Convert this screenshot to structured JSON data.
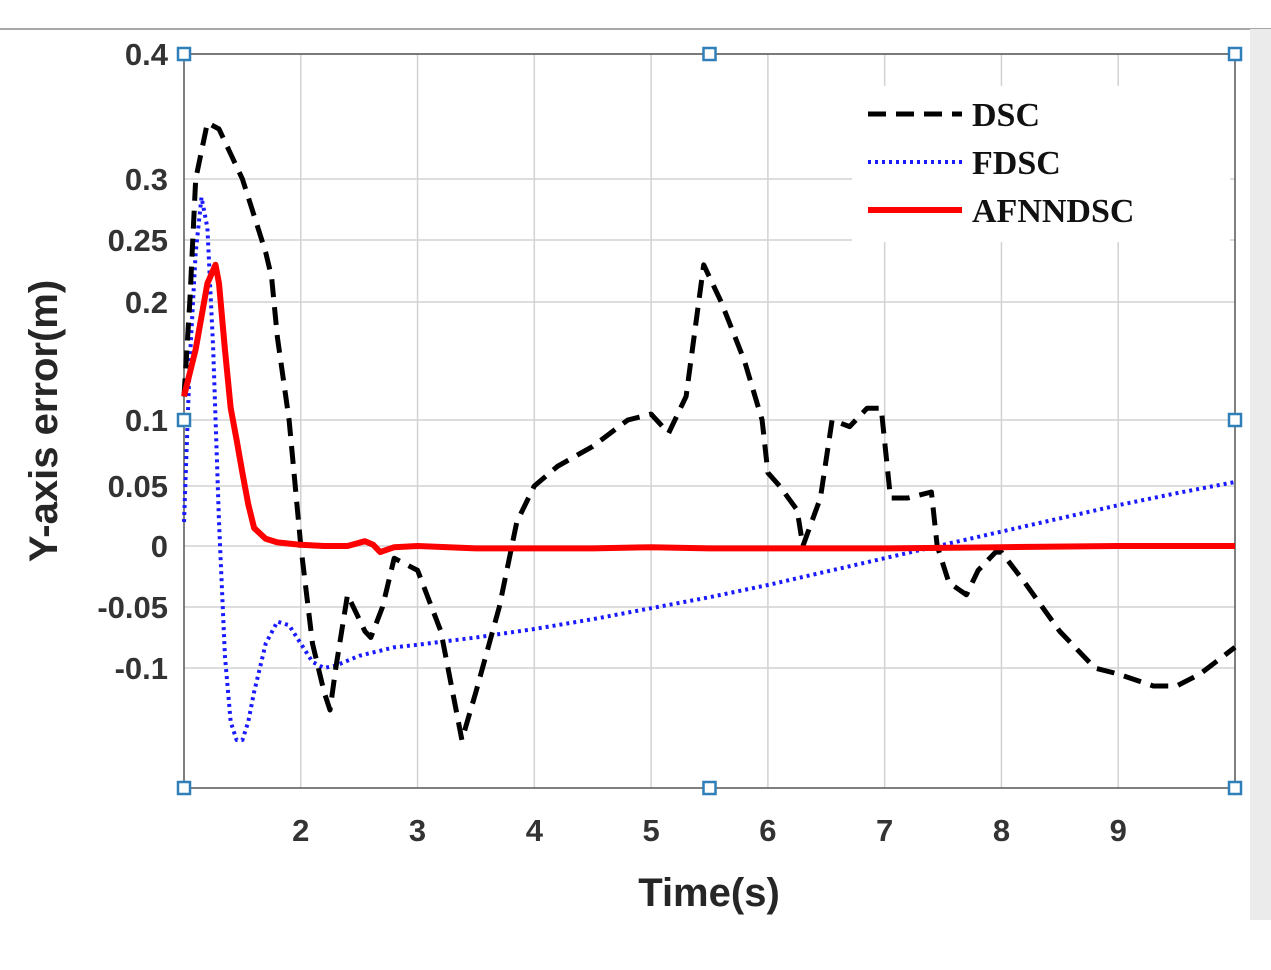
{
  "chart_data": {
    "type": "line",
    "xlabel": "Time(s)",
    "ylabel": "Y-axis error(m)",
    "xlim": [
      1,
      10
    ],
    "ylim": [
      -0.2,
      0.4
    ],
    "x_ticks": [
      2,
      3,
      4,
      5,
      6,
      7,
      8,
      9
    ],
    "y_ticks": [
      -0.1,
      -0.05,
      0,
      0.05,
      0.1,
      0.2,
      0.25,
      0.3,
      0.4
    ],
    "x_tick_labels": [
      "2",
      "3",
      "4",
      "5",
      "6",
      "7",
      "8",
      "9"
    ],
    "y_tick_labels": [
      "-0.1",
      "-0.05",
      "0",
      "0.05",
      "0.1",
      "0.2",
      "0.25",
      "0.3",
      "0.4"
    ],
    "grid": true,
    "legend_position": "top-right",
    "series": [
      {
        "name": "DSC",
        "color": "#000000",
        "style": "dashed",
        "x": [
          1.0,
          1.05,
          1.1,
          1.2,
          1.3,
          1.4,
          1.5,
          1.6,
          1.7,
          1.75,
          1.8,
          1.9,
          2.0,
          2.1,
          2.2,
          2.25,
          2.3,
          2.4,
          2.5,
          2.55,
          2.6,
          2.7,
          2.8,
          3.0,
          3.2,
          3.38,
          3.5,
          3.7,
          3.85,
          4.0,
          4.2,
          4.5,
          4.8,
          5.0,
          5.15,
          5.3,
          5.45,
          5.6,
          5.8,
          5.95,
          6.0,
          6.1,
          6.25,
          6.3,
          6.45,
          6.55,
          6.7,
          6.85,
          6.97,
          7.05,
          7.2,
          7.4,
          7.45,
          7.55,
          7.7,
          7.8,
          7.95,
          8.0,
          8.2,
          8.5,
          8.8,
          9.0,
          9.3,
          9.5,
          9.7,
          10.0
        ],
        "y": [
          0.12,
          0.2,
          0.3,
          0.345,
          0.34,
          0.32,
          0.3,
          0.27,
          0.24,
          0.22,
          0.17,
          0.1,
          0.0,
          -0.08,
          -0.12,
          -0.135,
          -0.1,
          -0.04,
          -0.06,
          -0.07,
          -0.075,
          -0.05,
          -0.01,
          -0.02,
          -0.07,
          -0.16,
          -0.12,
          -0.05,
          0.02,
          0.05,
          0.065,
          0.08,
          0.1,
          0.105,
          0.09,
          0.12,
          0.23,
          0.2,
          0.15,
          0.1,
          0.06,
          0.05,
          0.03,
          0.0,
          0.04,
          0.1,
          0.095,
          0.11,
          0.11,
          0.04,
          0.04,
          0.045,
          0.0,
          -0.03,
          -0.04,
          -0.02,
          -0.005,
          -0.005,
          -0.03,
          -0.07,
          -0.1,
          -0.105,
          -0.115,
          -0.115,
          -0.105,
          -0.083
        ]
      },
      {
        "name": "FDSC",
        "color": "#1a1aff",
        "style": "dotted",
        "x": [
          1.0,
          1.05,
          1.1,
          1.15,
          1.2,
          1.25,
          1.3,
          1.35,
          1.4,
          1.45,
          1.5,
          1.55,
          1.6,
          1.65,
          1.7,
          1.8,
          1.9,
          2.0,
          2.1,
          2.2,
          2.3,
          2.5,
          2.8,
          3.0,
          3.5,
          4.0,
          4.5,
          5.0,
          5.5,
          6.0,
          6.5,
          7.0,
          7.5,
          8.0,
          8.5,
          9.0,
          9.5,
          10.0
        ],
        "y": [
          0.02,
          0.15,
          0.24,
          0.285,
          0.26,
          0.16,
          0.02,
          -0.09,
          -0.145,
          -0.16,
          -0.16,
          -0.145,
          -0.12,
          -0.1,
          -0.08,
          -0.062,
          -0.065,
          -0.08,
          -0.095,
          -0.1,
          -0.098,
          -0.09,
          -0.083,
          -0.081,
          -0.075,
          -0.068,
          -0.06,
          -0.051,
          -0.042,
          -0.032,
          -0.021,
          -0.01,
          0.001,
          0.012,
          0.023,
          0.034,
          0.044,
          0.053
        ]
      },
      {
        "name": "AFNNDSC",
        "color": "#ff0000",
        "style": "solid",
        "x": [
          1.0,
          1.1,
          1.2,
          1.27,
          1.3,
          1.35,
          1.4,
          1.45,
          1.5,
          1.55,
          1.6,
          1.7,
          1.8,
          1.9,
          2.0,
          2.2,
          2.4,
          2.55,
          2.62,
          2.68,
          2.8,
          3.0,
          3.5,
          4.0,
          4.5,
          5.0,
          5.5,
          6.0,
          7.0,
          8.0,
          9.0,
          10.0
        ],
        "y": [
          0.12,
          0.16,
          0.215,
          0.23,
          0.215,
          0.16,
          0.11,
          0.085,
          0.06,
          0.035,
          0.015,
          0.006,
          0.003,
          0.002,
          0.001,
          0.0,
          0.0,
          0.004,
          0.001,
          -0.005,
          -0.001,
          0.0,
          -0.002,
          -0.002,
          -0.002,
          -0.001,
          -0.002,
          -0.002,
          -0.002,
          -0.001,
          0.0,
          0.0
        ]
      }
    ]
  }
}
